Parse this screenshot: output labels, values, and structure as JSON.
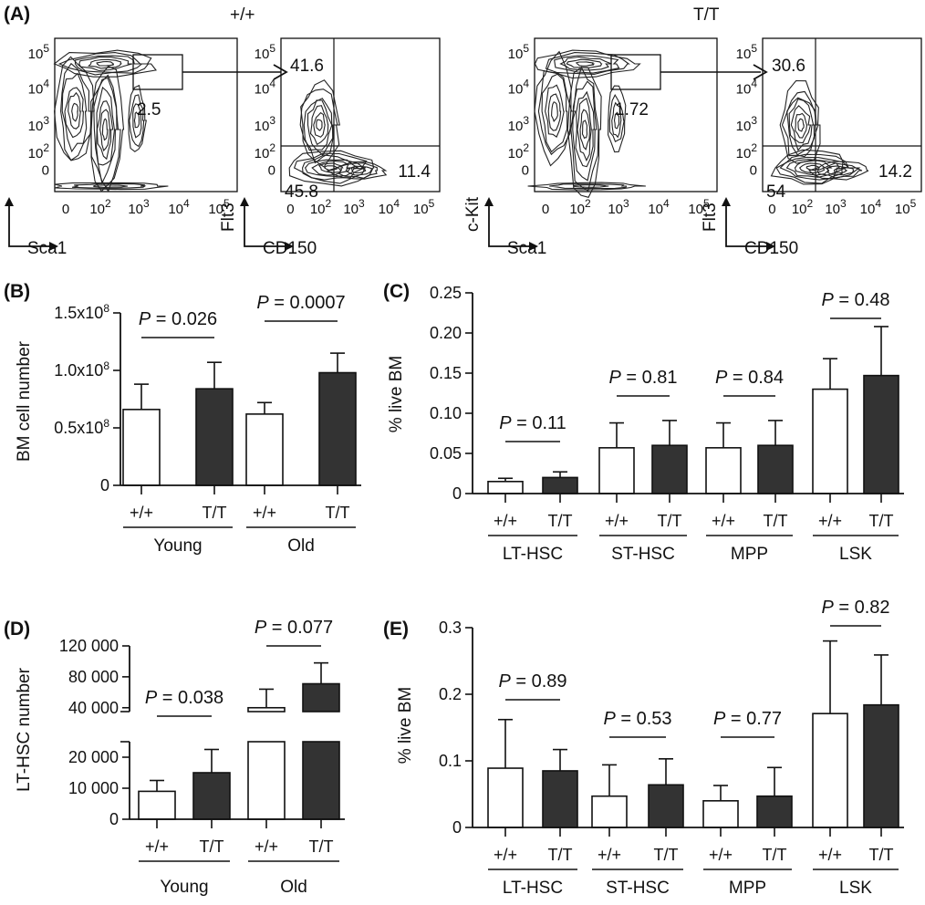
{
  "panels": {
    "A": "(A)",
    "B": "(B)",
    "C": "(C)",
    "D": "(D)",
    "E": "(E)"
  },
  "facs": {
    "genotypes": [
      "+/+",
      "T/T"
    ],
    "plots": [
      {
        "genotype": "+/+",
        "lsk_gate_pct": "2.5",
        "flt3_hi_pct": "41.6",
        "cd150_hi_pct": "11.4",
        "double_neg_pct": "45.8"
      },
      {
        "genotype": "T/T",
        "lsk_gate_pct": "1.72",
        "flt3_hi_pct": "30.6",
        "cd150_hi_pct": "14.2",
        "double_neg_pct": "54"
      }
    ],
    "x1_label": "Sca1",
    "y1_label": "c-Kit",
    "x2_label": "CD150",
    "y2_label": "Flt3",
    "x_ticks": [
      "0",
      "10",
      "10",
      "10",
      "10"
    ],
    "x_tick_exps": [
      "",
      "2",
      "3",
      "4",
      "5"
    ],
    "y_ticks": [
      "10",
      "10",
      "10",
      "10",
      "0"
    ],
    "y_tick_exps": [
      "5",
      "4",
      "3",
      "2",
      ""
    ]
  },
  "chart_data": [
    {
      "panel": "B",
      "type": "bar",
      "ylabel": "BM cell number",
      "ylim": [
        0,
        150000000
      ],
      "yticks": [
        "0",
        "0.5x10",
        "1.0x10",
        "1.5x10"
      ],
      "ytick_exp": "8",
      "yticks_values": [
        0,
        50000000,
        100000000,
        150000000
      ],
      "groups": [
        "Young",
        "Old"
      ],
      "categories": [
        "+/+",
        "T/T",
        "+/+",
        "T/T"
      ],
      "values": [
        66000000,
        84000000,
        62000000,
        98000000
      ],
      "errors": [
        22000000,
        23000000,
        10000000,
        17000000
      ],
      "p_values": [
        "= 0.026",
        "= 0.0007"
      ],
      "p_letter": "P"
    },
    {
      "panel": "C",
      "type": "bar",
      "ylabel": "% live BM",
      "ylim": [
        0,
        0.25
      ],
      "yticks": [
        "0",
        "0.05",
        "0.10",
        "0.15",
        "0.20",
        "0.25"
      ],
      "yticks_values": [
        0,
        0.05,
        0.1,
        0.15,
        0.2,
        0.25
      ],
      "groups": [
        "LT-HSC",
        "ST-HSC",
        "MPP",
        "LSK"
      ],
      "categories": [
        "+/+",
        "T/T",
        "+/+",
        "T/T",
        "+/+",
        "T/T",
        "+/+",
        "T/T"
      ],
      "values": [
        0.015,
        0.02,
        0.057,
        0.06,
        0.057,
        0.06,
        0.13,
        0.147
      ],
      "errors": [
        0.004,
        0.007,
        0.031,
        0.031,
        0.031,
        0.031,
        0.038,
        0.061
      ],
      "p_values": [
        "= 0.11",
        "= 0.81",
        "= 0.84",
        "= 0.48"
      ],
      "p_letter": "P"
    },
    {
      "panel": "D",
      "type": "bar",
      "ylabel": "LT-HSC number",
      "axis_break": true,
      "yticks_lower": [
        "0",
        "10 000",
        "20 000"
      ],
      "yticks_lower_values": [
        0,
        10000,
        20000
      ],
      "yticks_upper": [
        "40 000",
        "80 000",
        "120 000"
      ],
      "yticks_upper_values": [
        40000,
        80000,
        120000
      ],
      "groups": [
        "Young",
        "Old"
      ],
      "categories": [
        "+/+",
        "T/T",
        "+/+",
        "T/T"
      ],
      "values": [
        9000,
        15000,
        40000,
        71000
      ],
      "errors": [
        3500,
        7500,
        24000,
        27000
      ],
      "p_values": [
        "= 0.038",
        "= 0.077"
      ],
      "p_letter": "P"
    },
    {
      "panel": "E",
      "type": "bar",
      "ylabel": "% live BM",
      "ylim": [
        0,
        0.3
      ],
      "yticks": [
        "0",
        "0.1",
        "0.2",
        "0.3"
      ],
      "yticks_values": [
        0,
        0.1,
        0.2,
        0.3
      ],
      "groups": [
        "LT-HSC",
        "ST-HSC",
        "MPP",
        "LSK"
      ],
      "categories": [
        "+/+",
        "T/T",
        "+/+",
        "T/T",
        "+/+",
        "T/T",
        "+/+",
        "T/T"
      ],
      "values": [
        0.089,
        0.085,
        0.047,
        0.064,
        0.04,
        0.047,
        0.171,
        0.184
      ],
      "errors": [
        0.073,
        0.032,
        0.047,
        0.039,
        0.023,
        0.043,
        0.109,
        0.075
      ],
      "p_values": [
        "= 0.89",
        "= 0.53",
        "= 0.77",
        "= 0.82"
      ],
      "p_letter": "P"
    }
  ],
  "colors": {
    "wt_bar": "#ffffff",
    "mut_bar": "#333333",
    "outline": "#111111"
  }
}
